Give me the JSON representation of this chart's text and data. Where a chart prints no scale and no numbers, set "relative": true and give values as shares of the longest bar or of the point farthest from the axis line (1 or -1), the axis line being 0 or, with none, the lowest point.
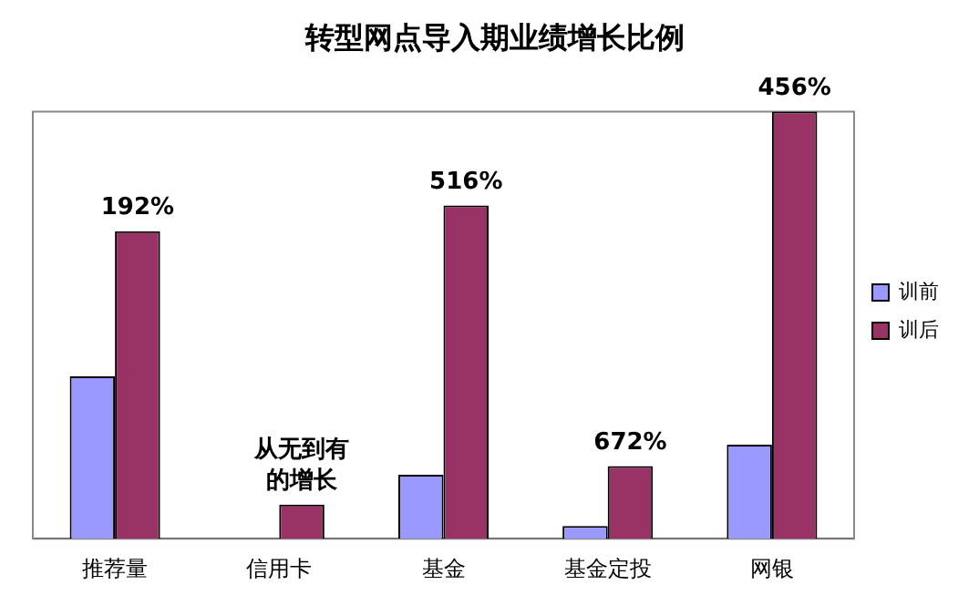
{
  "chart_data": {
    "type": "bar",
    "title": "转型网点导入期业绩增长比例",
    "categories": [
      "推荐量",
      "信用卡",
      "基金",
      "基金定投",
      "网银"
    ],
    "relative": true,
    "legend": "right",
    "tick_labels": "x",
    "grid": false,
    "series": [
      {
        "name": "训前",
        "color": "#9999ff",
        "values": [
          0.38,
          0,
          0.15,
          0.03,
          0.22
        ]
      },
      {
        "name": "训后",
        "color": "#993366",
        "values": [
          0.72,
          0.08,
          0.78,
          0.17,
          1
        ]
      }
    ],
    "annotations": [
      {
        "text": "192%",
        "x": "推荐量",
        "y": 0.72
      },
      {
        "text": "从无到有的增长",
        "x": "信用卡",
        "y": 0.08
      },
      {
        "text": "516%",
        "x": "基金",
        "y": 0.78
      },
      {
        "text": "672%",
        "x": "基金定投",
        "y": 0.17
      },
      {
        "text": "456%",
        "x": "网银",
        "y": 1
      }
    ]
  }
}
